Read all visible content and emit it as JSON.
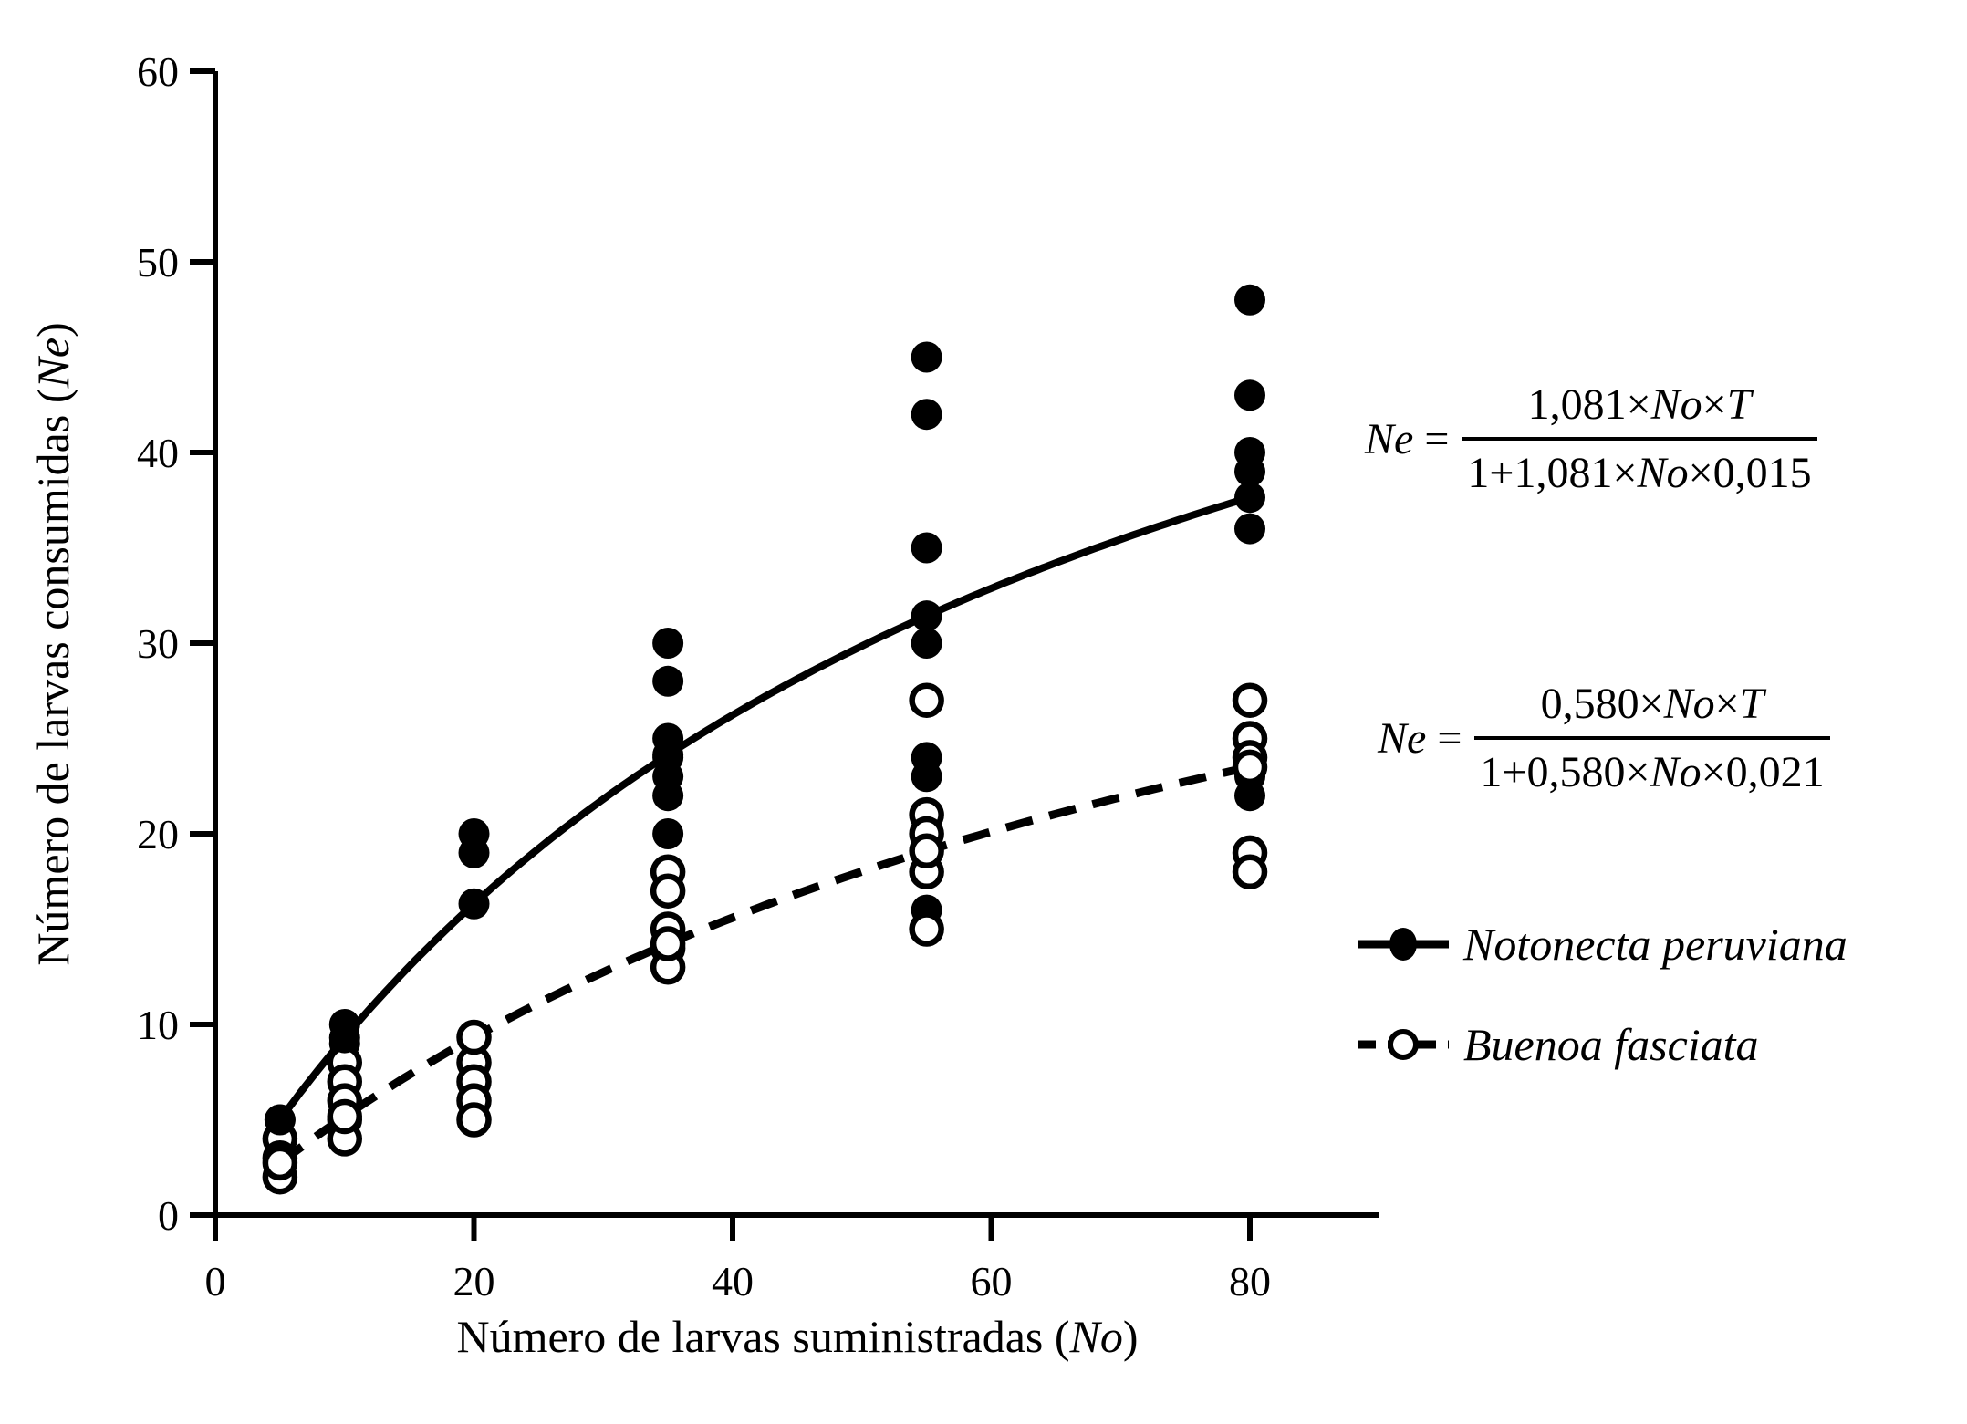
{
  "figure": {
    "background": "#ffffff",
    "ink_color": "#000000"
  },
  "chart_data": {
    "type": "scatter",
    "title": "",
    "xlabel": "Número de larvas suministradas (No)",
    "ylabel": "Número de larvas consumidas (Ne)",
    "xlim": [
      0,
      90
    ],
    "ylim": [
      0,
      60
    ],
    "x_ticks": [
      "0",
      "20",
      "40",
      "60",
      "80"
    ],
    "y_ticks": [
      "0",
      "10",
      "20",
      "30",
      "40",
      "50",
      "60"
    ],
    "grid": false,
    "legend_position": "right-bottom",
    "x_values": [
      5,
      10,
      20,
      35,
      55,
      80
    ],
    "series": [
      {
        "name": "Notonecta peruviana",
        "marker": "filled-circle",
        "line": "solid",
        "points": [
          [
            5,
            5
          ],
          [
            10,
            10
          ],
          [
            10,
            9
          ],
          [
            20,
            20
          ],
          [
            20,
            19
          ],
          [
            35,
            30
          ],
          [
            35,
            28
          ],
          [
            35,
            25
          ],
          [
            35,
            24
          ],
          [
            35,
            23
          ],
          [
            35,
            22
          ],
          [
            35,
            20
          ],
          [
            55,
            45
          ],
          [
            55,
            42
          ],
          [
            55,
            35
          ],
          [
            55,
            30
          ],
          [
            55,
            24
          ],
          [
            55,
            23
          ],
          [
            55,
            16
          ],
          [
            80,
            48
          ],
          [
            80,
            43
          ],
          [
            80,
            40
          ],
          [
            80,
            39
          ],
          [
            80,
            36
          ],
          [
            80,
            23
          ],
          [
            80,
            22
          ]
        ],
        "fit": {
          "attack_rate_a": 1.081,
          "handling_time_th": 0.015,
          "fitted_values_at_x": [
            5.0,
            9.3,
            16.33,
            24.14,
            31.43,
            37.65
          ]
        }
      },
      {
        "name": "Buenoa fasciata",
        "marker": "open-circle",
        "line": "dashed",
        "points": [
          [
            5,
            4
          ],
          [
            5,
            3
          ],
          [
            5,
            2
          ],
          [
            10,
            8
          ],
          [
            10,
            7
          ],
          [
            10,
            6
          ],
          [
            10,
            5
          ],
          [
            10,
            4
          ],
          [
            20,
            8
          ],
          [
            20,
            7
          ],
          [
            20,
            6
          ],
          [
            20,
            5
          ],
          [
            35,
            18
          ],
          [
            35,
            17
          ],
          [
            35,
            15
          ],
          [
            35,
            14
          ],
          [
            35,
            13
          ],
          [
            55,
            27
          ],
          [
            55,
            21
          ],
          [
            55,
            20
          ],
          [
            55,
            18
          ],
          [
            55,
            15
          ],
          [
            80,
            27
          ],
          [
            80,
            25
          ],
          [
            80,
            24
          ],
          [
            80,
            19
          ],
          [
            80,
            18
          ]
        ],
        "fit": {
          "attack_rate_a": 0.58,
          "handling_time_th": 0.021,
          "fitted_values_at_x": [
            2.73,
            5.17,
            9.33,
            14.25,
            19.05,
            23.5
          ]
        }
      }
    ]
  },
  "equations": [
    {
      "series": "Notonecta peruviana",
      "lhs": "Ne =",
      "numerator": "1,081×No×T",
      "denominator": "1+1,081×No×0,015"
    },
    {
      "series": "Buenoa fasciata",
      "lhs": "Ne =",
      "numerator": "0,580×No×T",
      "denominator": "1+0,580×No×0,021"
    }
  ],
  "legend": [
    {
      "label": "Notonecta peruviana",
      "marker": "filled-circle",
      "line": "solid"
    },
    {
      "label": "Buenoa fasciata",
      "marker": "open-circle",
      "line": "dashed"
    }
  ]
}
